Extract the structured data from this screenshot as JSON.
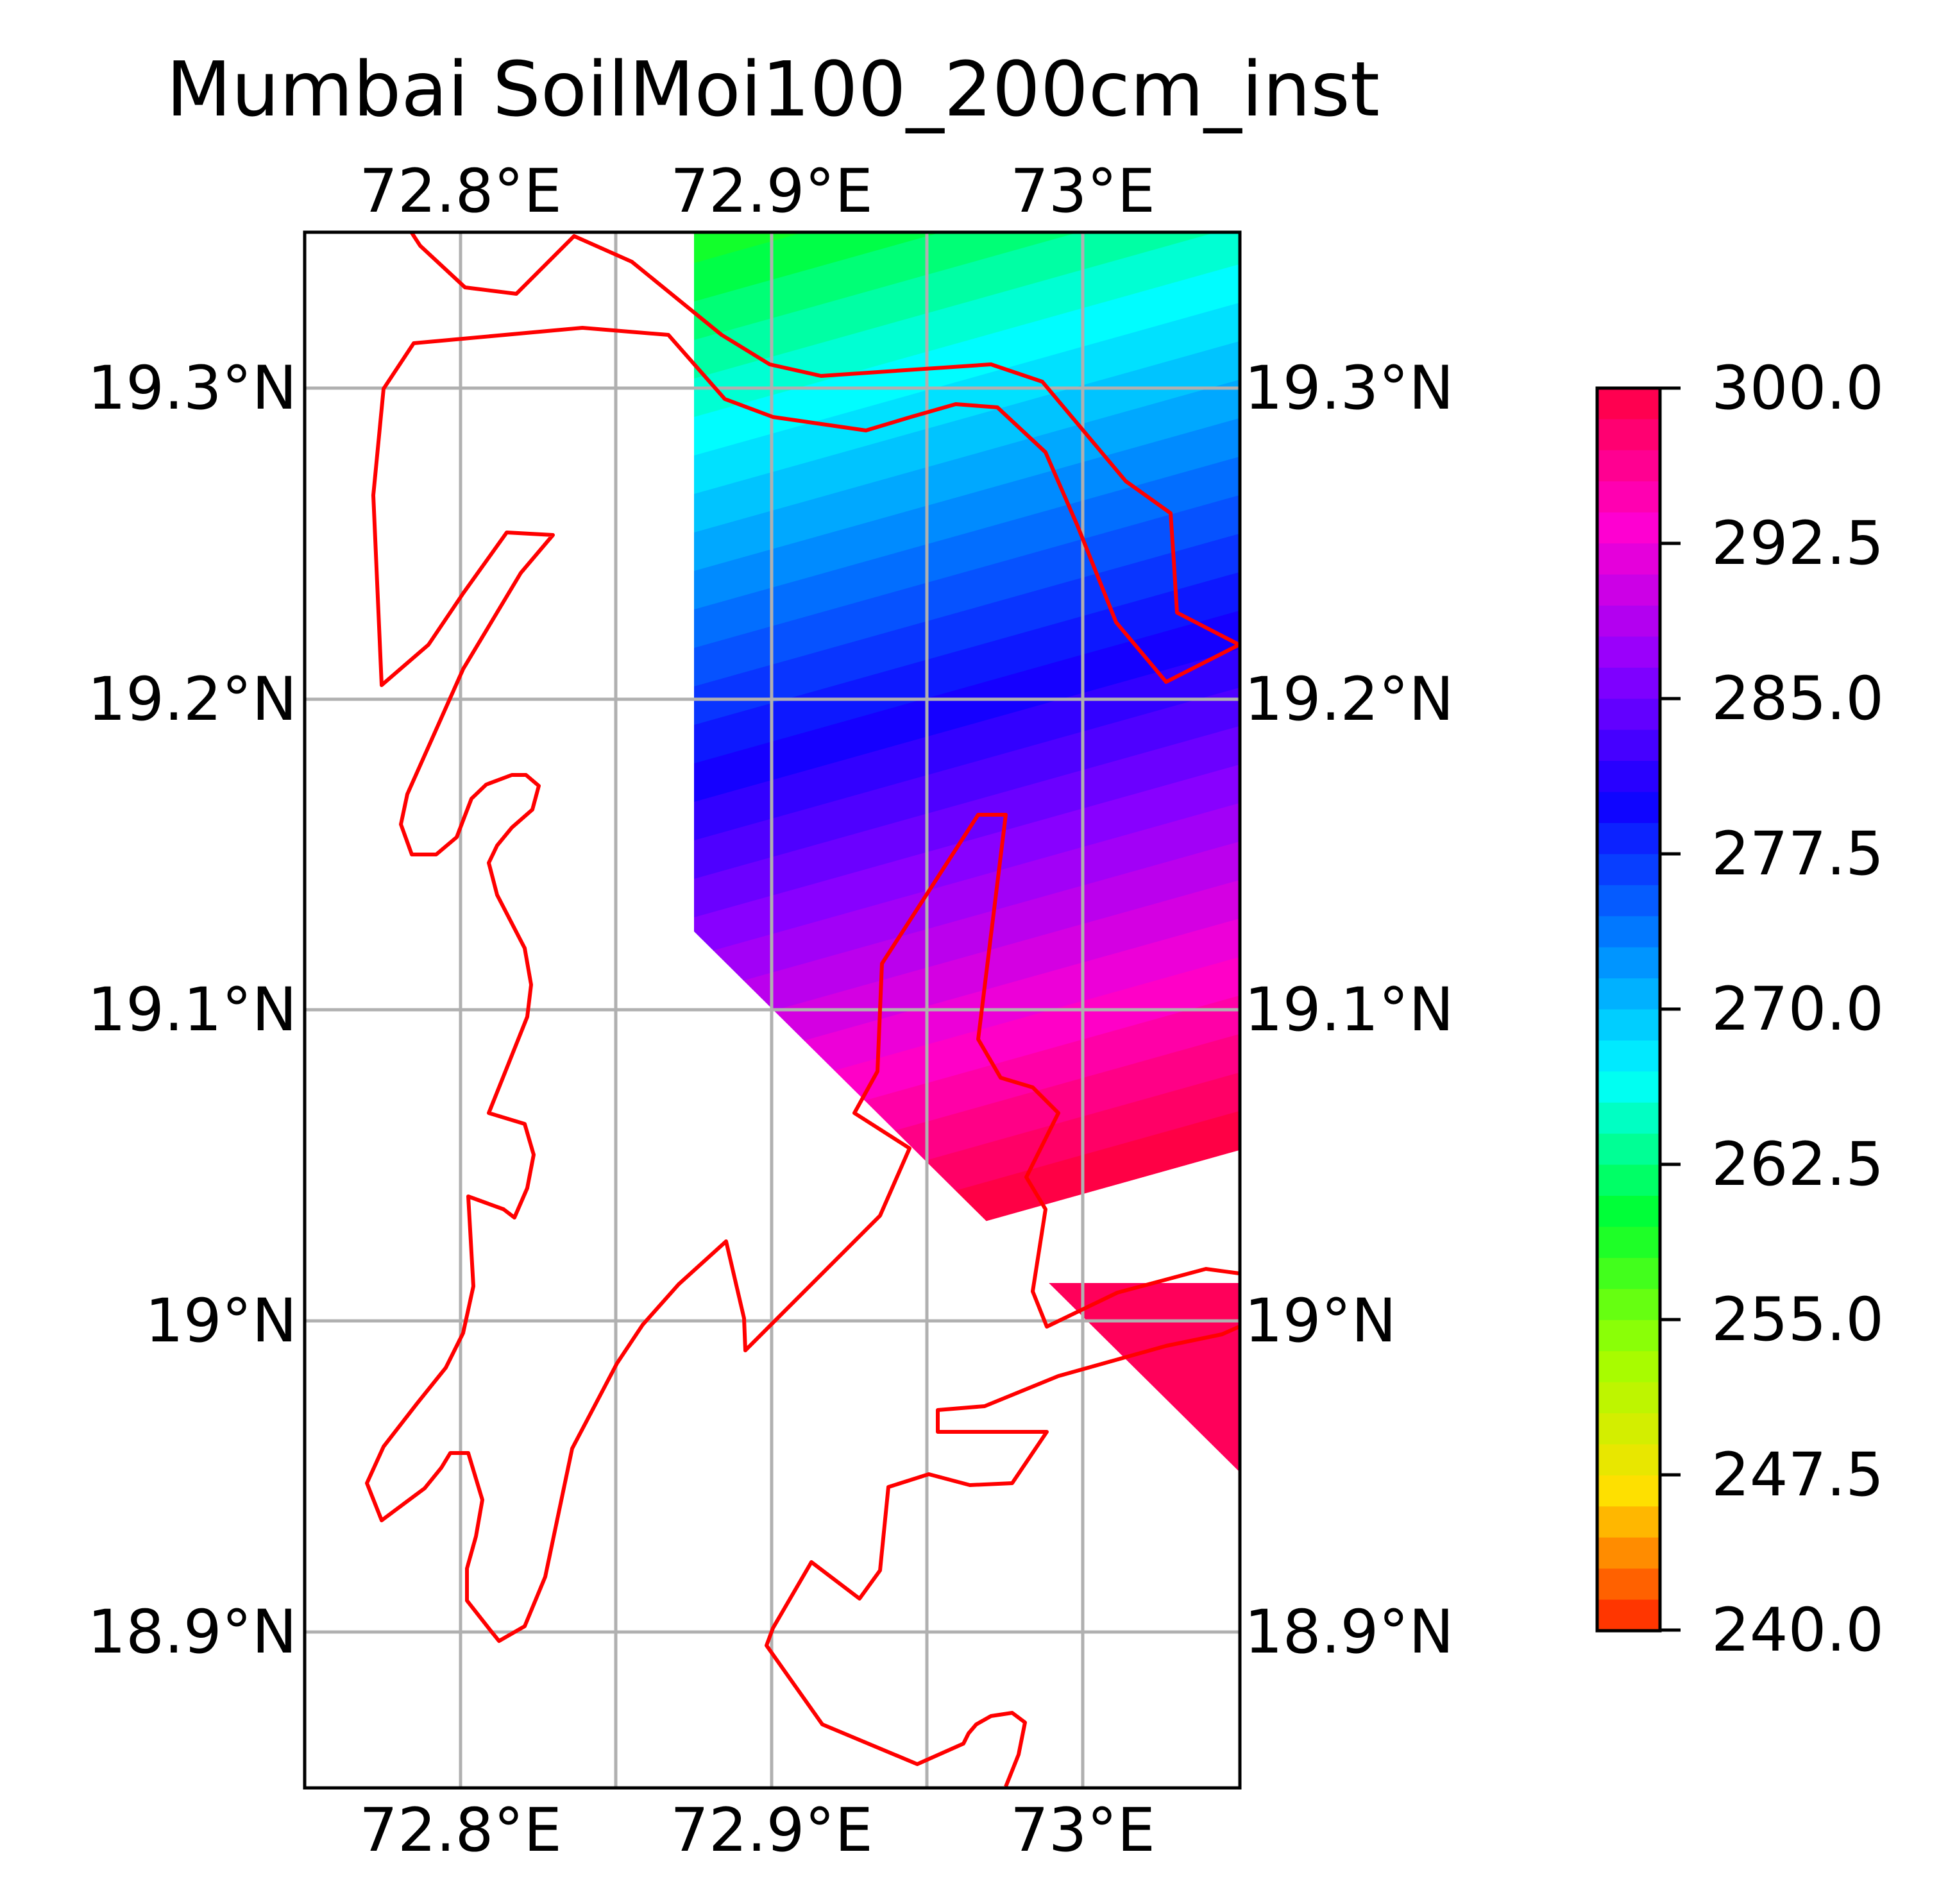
{
  "title": "Mumbai SoilMoi100_200cm_inst",
  "lon_ticks": [
    "72.8°E",
    "72.9°E",
    "73°E"
  ],
  "lat_ticks": [
    "19.3°N",
    "19.2°N",
    "19.1°N",
    "19°N",
    "18.9°N"
  ],
  "colorbar": {
    "ticks": [
      "300.0",
      "292.5",
      "285.0",
      "277.5",
      "270.0",
      "262.5",
      "255.0",
      "247.5",
      "240.0"
    ],
    "min": 240,
    "max": 300,
    "levels": 40,
    "colormap": "gist_rainbow",
    "colors_top_to_bottom": [
      "#ff0040",
      "#ff00d0",
      "#9000ff",
      "#1000ff",
      "#0080ff",
      "#00ffff",
      "#00ff30",
      "#a0ff00",
      "#ffe000",
      "#ff2000"
    ]
  },
  "coastline_color": "#ff0000",
  "grid": true
}
